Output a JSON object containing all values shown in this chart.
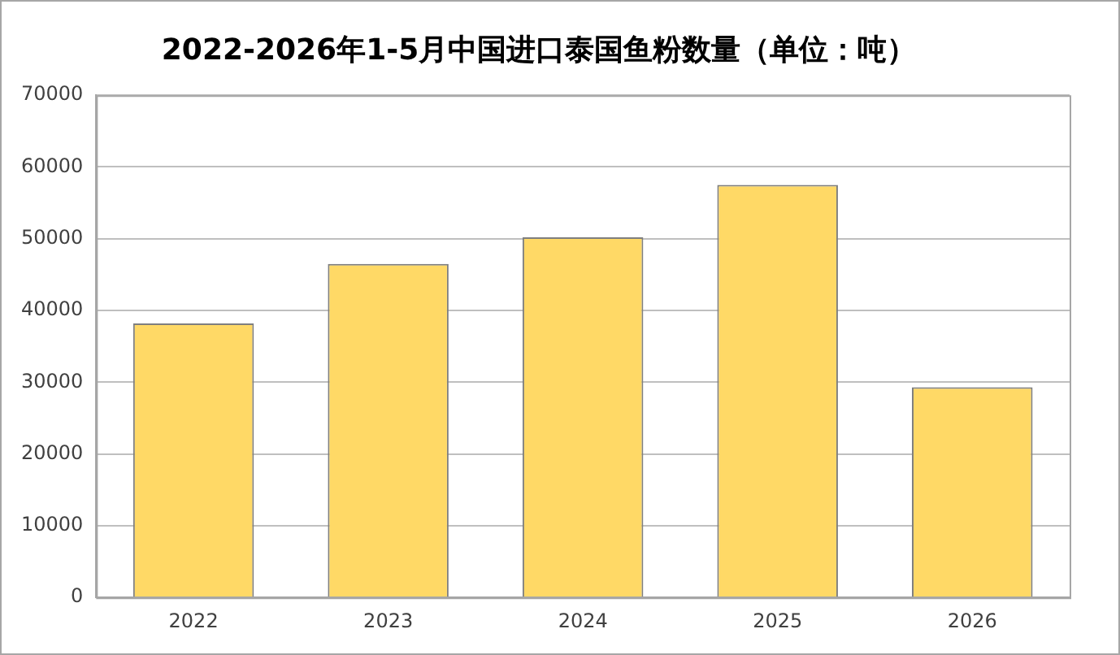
{
  "chart_data": {
    "type": "bar",
    "title": "2022-2026年1-5月中国进口泰国鱼粉数量（单位：吨）",
    "categories": [
      "2022",
      "2023",
      "2024",
      "2025",
      "2026"
    ],
    "values": [
      38200,
      46500,
      50200,
      57500,
      29300
    ],
    "color": "#ffd966",
    "ylim": [
      0,
      70000
    ],
    "yticks": [
      0,
      10000,
      20000,
      30000,
      40000,
      50000,
      60000,
      70000
    ],
    "grid": "y",
    "legend": false
  }
}
